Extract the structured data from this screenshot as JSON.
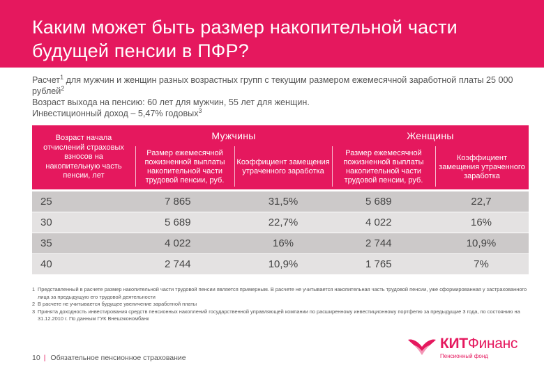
{
  "title": "Каким может быть размер накопительной части будущей пенсии в ПФР?",
  "intro": {
    "line1_pre": "Расчет",
    "line1_sup": "1",
    "line1_post": " для мужчин и женщин разных возрастных групп с текущим размером ежемесячной заработной платы 25 000 рублей",
    "line1_sup2": "2",
    "line2": "Возраст выхода на пенсию: 60 лет для мужчин, 55 лет для женщин.",
    "line3_pre": "Инвестиционный доход – 5,47% годовых",
    "line3_sup": "3"
  },
  "table": {
    "age_header": "Возраст начала отчислений страховых взносов на накопительную часть пенсии, лет",
    "group_men": "Мужчины",
    "group_women": "Женщины",
    "col_payment": "Размер ежемесячной пожизненной выплаты накопительной части трудовой пенсии, руб.",
    "col_ratio": "Коэффициент замещения утраченного заработка",
    "rows": [
      {
        "age": "25",
        "men_payment": "7 865",
        "men_ratio": "31,5%",
        "women_payment": "5 689",
        "women_ratio": "22,7"
      },
      {
        "age": "30",
        "men_payment": "5 689",
        "men_ratio": "22,7%",
        "women_payment": "4 022",
        "women_ratio": "16%"
      },
      {
        "age": "35",
        "men_payment": "4 022",
        "men_ratio": "16%",
        "women_payment": "2 744",
        "women_ratio": "10,9%"
      },
      {
        "age": "40",
        "men_payment": "2 744",
        "men_ratio": "10,9%",
        "women_payment": "1 765",
        "women_ratio": "7%"
      }
    ]
  },
  "notes": [
    {
      "num": "1",
      "text": "Представленный в расчете размер накопительной части трудовой пенсии является примерным. В расчете не учитывается накопительная часть трудовой пенсии, уже сформированная у застрахованного лица за предыдущую его трудовой деятельности"
    },
    {
      "num": "2",
      "text": "В расчете не учитывается будущее увеличение заработной платы"
    },
    {
      "num": "3",
      "text": "Принята доходность инвестирования средств пенсионных накоплений государственной управляющей компании по расширенному инвестиционному портфелю за предыдущие 3 года, по состоянию на 31.12.2010 г. По данным ГУК Внешэкономбанк"
    }
  ],
  "footer": {
    "page": "10",
    "text": "Обязательное пенсионное страхование"
  },
  "logo": {
    "bold": "КИТ",
    "light": "Финанс",
    "subtitle": "Пенсионный фонд"
  },
  "colors": {
    "accent": "#e5185e",
    "row_dark": "#ccc9c9",
    "row_light": "#e4e2e2"
  }
}
